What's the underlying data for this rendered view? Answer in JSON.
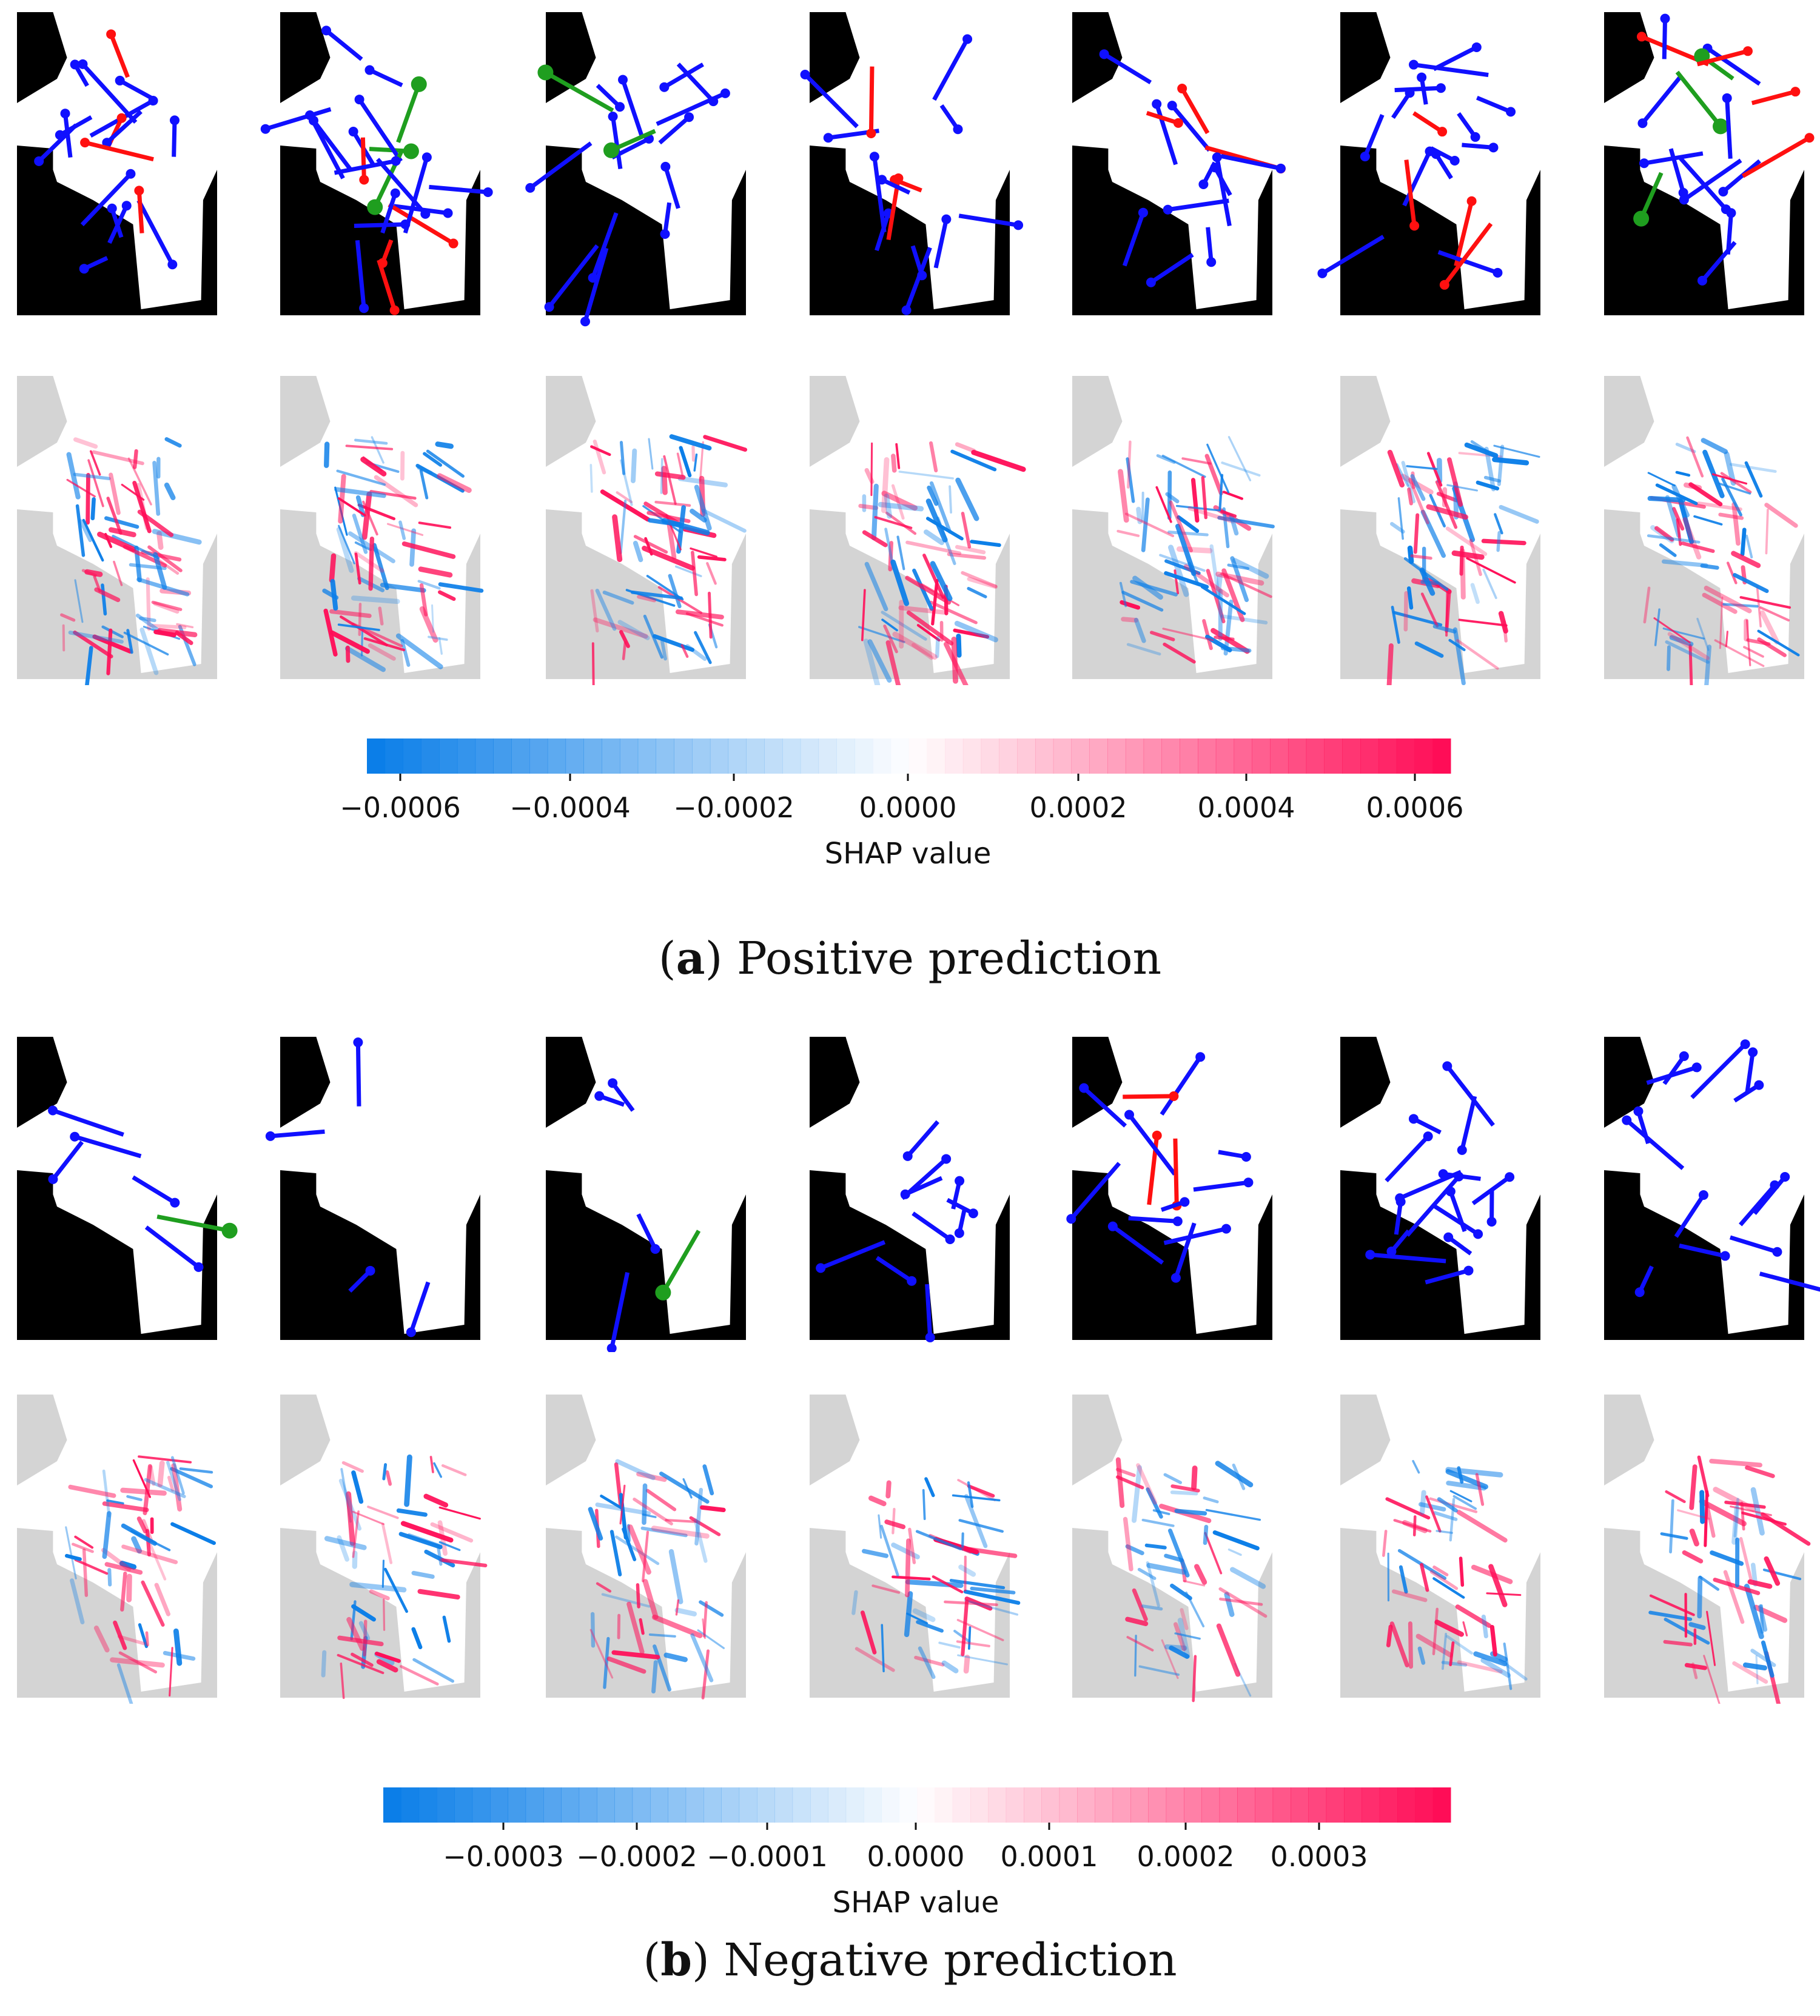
{
  "figure": {
    "panels": [
      {
        "id": "a",
        "caption_letter": "a",
        "caption_text": "Positive prediction",
        "colorbar": {
          "label": "SHAP value",
          "ticks": [
            "−0.0006",
            "−0.0004",
            "−0.0002",
            "0.0000",
            "0.0002",
            "0.0004",
            "0.0006"
          ],
          "range": [
            -0.0006,
            0.0006
          ]
        }
      },
      {
        "id": "b",
        "caption_letter": "b",
        "caption_text": "Negative prediction",
        "colorbar": {
          "label": "SHAP value",
          "ticks": [
            "−0.0003",
            "−0.0002",
            "−0.0001",
            "0.0000",
            "0.0001",
            "0.0002",
            "0.0003"
          ],
          "range": [
            -0.0003,
            0.0003
          ]
        }
      }
    ],
    "images_per_row": 7,
    "colors": {
      "mask": "#000000",
      "region": "#ffffff",
      "shap_background": "#d4d4d4",
      "arrow_blue": "#1010ff",
      "arrow_red": "#ff1010",
      "arrow_green": "#1f9e1f",
      "shap_negative": "#0b7ee8",
      "shap_positive": "#ff0d57"
    }
  }
}
